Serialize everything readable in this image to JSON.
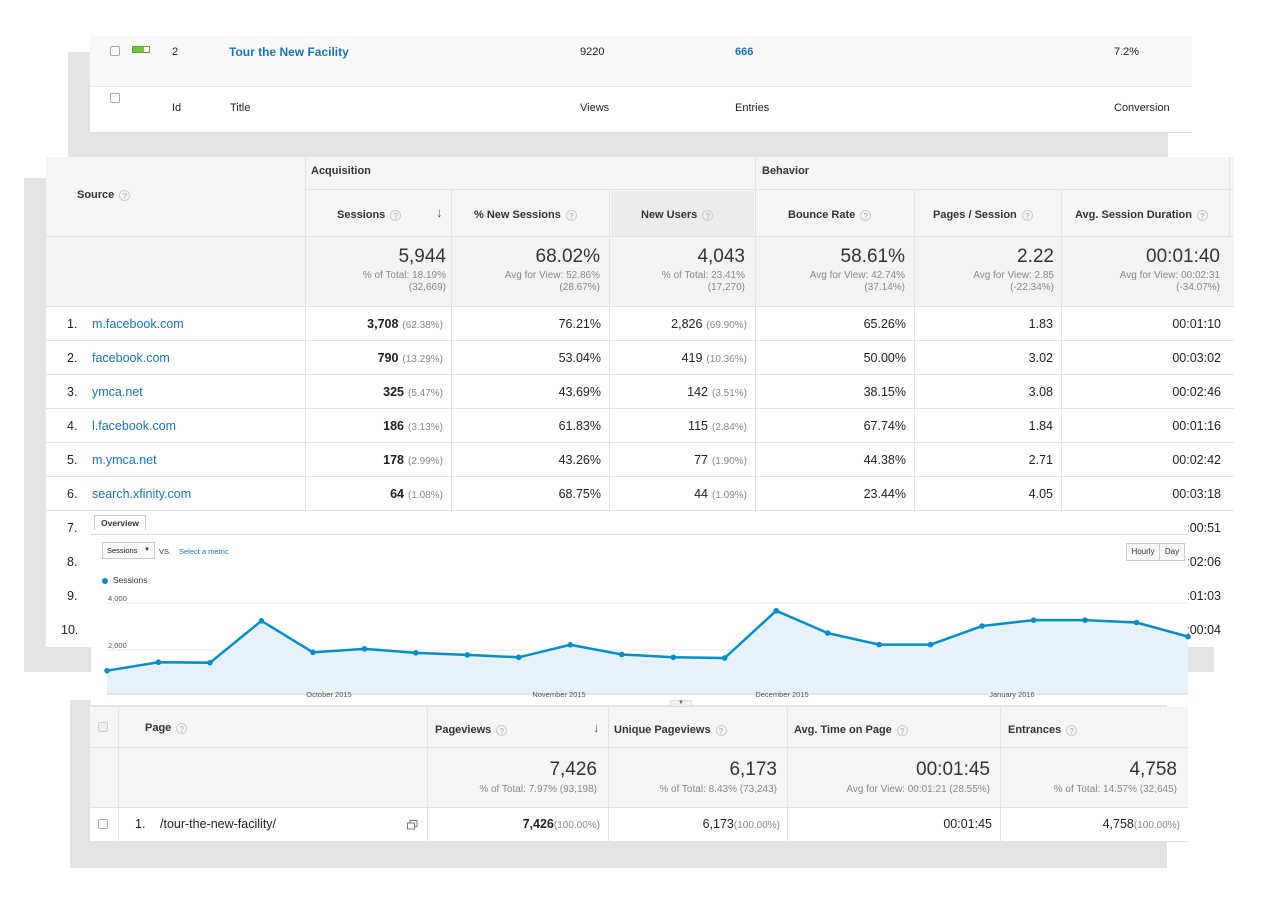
{
  "top_table": {
    "row": {
      "id": "2",
      "title": "Tour the New Facility",
      "views": "9220",
      "entries": "666",
      "conversion": "7.2%"
    },
    "headers": {
      "id": "Id",
      "title": "Title",
      "views": "Views",
      "entries": "Entries",
      "conversion": "Conversion"
    },
    "status_color": "#7ac143"
  },
  "source_table": {
    "source_header": "Source",
    "group_acquisition": "Acquisition",
    "group_behavior": "Behavior",
    "columns": [
      "Sessions",
      "% New Sessions",
      "New Users",
      "Bounce Rate",
      "Pages / Session",
      "Avg. Session Duration"
    ],
    "totals": [
      {
        "value": "5,944",
        "line1": "% of Total: 18.19%",
        "line2": "(32,669)"
      },
      {
        "value": "68.02%",
        "line1": "Avg for View: 52.86%",
        "line2": "(28.67%)"
      },
      {
        "value": "4,043",
        "line1": "% of Total: 23.41%",
        "line2": "(17,270)"
      },
      {
        "value": "58.61%",
        "line1": "Avg for View: 42.74%",
        "line2": "(37.14%)"
      },
      {
        "value": "2.22",
        "line1": "Avg for View: 2.85",
        "line2": "(-22.34%)"
      },
      {
        "value": "00:01:40",
        "line1": "Avg for View: 00:02:31",
        "line2": "(-34.07%)"
      }
    ],
    "rows": [
      {
        "n": "1.",
        "source": "m.facebook.com",
        "sessions": "3,708",
        "sessions_pct": "(62.38%)",
        "new_sessions": "76.21%",
        "new_users": "2,826",
        "new_users_pct": "(69.90%)",
        "bounce": "65.26%",
        "pages": "1.83",
        "duration": "00:01:10"
      },
      {
        "n": "2.",
        "source": "facebook.com",
        "sessions": "790",
        "sessions_pct": "(13.29%)",
        "new_sessions": "53.04%",
        "new_users": "419",
        "new_users_pct": "(10.36%)",
        "bounce": "50.00%",
        "pages": "3.02",
        "duration": "00:03:02"
      },
      {
        "n": "3.",
        "source": "ymca.net",
        "sessions": "325",
        "sessions_pct": "(5.47%)",
        "new_sessions": "43.69%",
        "new_users": "142",
        "new_users_pct": "(3.51%)",
        "bounce": "38.15%",
        "pages": "3.08",
        "duration": "00:02:46"
      },
      {
        "n": "4.",
        "source": "l.facebook.com",
        "sessions": "186",
        "sessions_pct": "(3.13%)",
        "new_sessions": "61.83%",
        "new_users": "115",
        "new_users_pct": "(2.84%)",
        "bounce": "67.74%",
        "pages": "1.84",
        "duration": "00:01:16"
      },
      {
        "n": "5.",
        "source": "m.ymca.net",
        "sessions": "178",
        "sessions_pct": "(2.99%)",
        "new_sessions": "43.26%",
        "new_users": "77",
        "new_users_pct": "(1.90%)",
        "bounce": "44.38%",
        "pages": "2.71",
        "duration": "00:02:42"
      },
      {
        "n": "6.",
        "source": "search.xfinity.com",
        "sessions": "64",
        "sessions_pct": "(1.08%)",
        "new_sessions": "68.75%",
        "new_users": "44",
        "new_users_pct": "(1.09%)",
        "bounce": "23.44%",
        "pages": "4.05",
        "duration": "00:03:18"
      }
    ],
    "hidden_rows": [
      {
        "n": "7.",
        "duration": ":00:51"
      },
      {
        "n": "8.",
        "duration": ":02:06"
      },
      {
        "n": "9.",
        "duration": ":01:03"
      },
      {
        "n": "10.",
        "duration": ":00:04"
      }
    ]
  },
  "overview": {
    "tab": "Overview",
    "metric_select": "Sessions",
    "vs": "VS.",
    "select_metric": "Select a metric",
    "hourly": "Hourly",
    "day": "Day",
    "legend": "Sessions",
    "series_color": "#058dc7"
  },
  "chart_data": {
    "type": "area",
    "series": [
      {
        "name": "Sessions",
        "values": [
          950,
          1310,
          1290,
          3070,
          1730,
          1880,
          1710,
          1620,
          1520,
          2050,
          1640,
          1520,
          1490,
          3500,
          2550,
          2060,
          2060,
          2850,
          3100,
          3100,
          3000,
          2400
        ]
      }
    ],
    "x_labels": [
      "October 2015",
      "November 2015",
      "December 2015",
      "January 2016"
    ],
    "y_ticks": [
      "4,000",
      "2,000"
    ],
    "ylim": [
      0,
      4000
    ]
  },
  "page_table": {
    "columns": [
      "Page",
      "Pageviews",
      "Unique Pageviews",
      "Avg. Time on Page",
      "Entrances"
    ],
    "totals": [
      {
        "value": "7,426",
        "sub": "% of Total: 7.97% (93,198)"
      },
      {
        "value": "6,173",
        "sub": "% of Total: 8.43% (73,243)"
      },
      {
        "value": "00:01:45",
        "sub": "Avg for View: 00:01:21 (28.55%)"
      },
      {
        "value": "4,758",
        "sub": "% of Total: 14.57% (32,645)"
      }
    ],
    "row": {
      "n": "1.",
      "page": "/tour-the-new-facility/",
      "pageviews": "7,426",
      "pageviews_pct": "(100.00%)",
      "unique": "6,173",
      "unique_pct": "(100.00%)",
      "avg_time": "00:01:45",
      "entrances": "4,758",
      "entrances_pct": "(100.00%)"
    }
  }
}
